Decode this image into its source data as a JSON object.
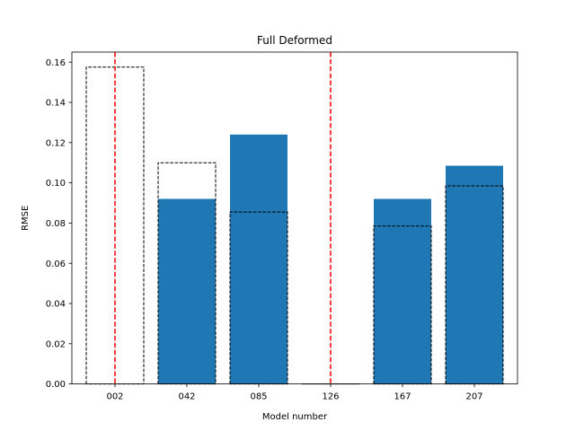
{
  "chart_data": {
    "type": "bar",
    "title": "Full Deformed",
    "xlabel": "Model number",
    "ylabel": "RMSE",
    "categories": [
      "002",
      "042",
      "085",
      "126",
      "167",
      "207"
    ],
    "series": [
      {
        "style": "filled",
        "color": "#1f77b4",
        "values": [
          0.0,
          0.092,
          0.124,
          0.0,
          0.092,
          0.1085
        ]
      },
      {
        "style": "dashed-outline",
        "color": "#000000",
        "values": [
          0.1575,
          0.11,
          0.0855,
          0.0,
          0.0785,
          0.0985
        ]
      }
    ],
    "vertical_lines": [
      {
        "category": "002",
        "style": "dashed",
        "color": "#ff0000"
      },
      {
        "category": "126",
        "style": "dashed",
        "color": "#ff0000"
      }
    ],
    "ylim": [
      0,
      0.165
    ],
    "yticks": [
      "0.00",
      "0.02",
      "0.04",
      "0.06",
      "0.08",
      "0.10",
      "0.12",
      "0.14",
      "0.16"
    ],
    "grid": false,
    "legend": "none"
  }
}
